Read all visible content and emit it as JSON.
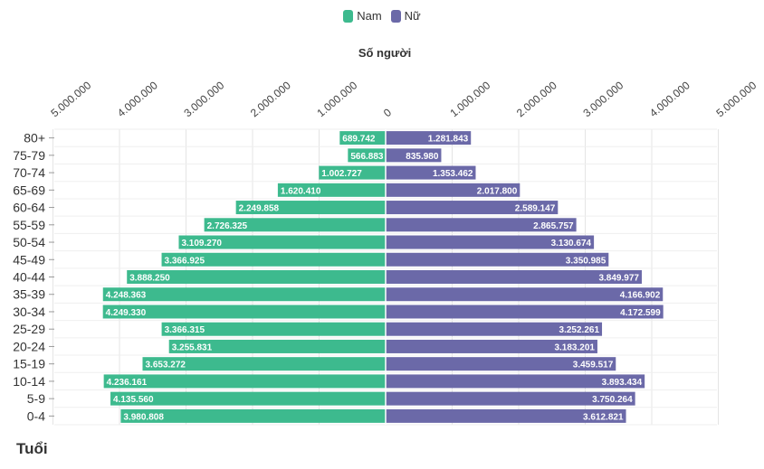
{
  "legend": {
    "male": "Nam",
    "female": "Nữ"
  },
  "colors": {
    "male": "#3dba8e",
    "female": "#6b69a8",
    "grid": "#e4e4e4",
    "text": "#333333"
  },
  "chart_data": {
    "type": "bar",
    "orientation": "horizontal-population-pyramid",
    "title": "",
    "xlabel": "Số người",
    "ylabel": "Tuổi",
    "xlim": [
      -5000000,
      5000000
    ],
    "x_ticks": [
      -5000000,
      -4000000,
      -3000000,
      -2000000,
      -1000000,
      0,
      1000000,
      2000000,
      3000000,
      4000000,
      5000000
    ],
    "x_tick_labels": [
      "5.000.000",
      "4.000.000",
      "3.000.000",
      "2.000.000",
      "1.000.000",
      "0",
      "1.000.000",
      "2.000.000",
      "3.000.000",
      "4.000.000",
      "5.000.000"
    ],
    "legend_position": "top-center",
    "categories": [
      "80+",
      "75-79",
      "70-74",
      "65-69",
      "60-64",
      "55-59",
      "50-54",
      "45-49",
      "40-44",
      "35-39",
      "30-34",
      "25-29",
      "20-24",
      "15-19",
      "10-14",
      "5-9",
      "0-4"
    ],
    "series": [
      {
        "name": "Nam",
        "side": "left",
        "values": [
          689742,
          566883,
          1002727,
          1620410,
          2249858,
          2726325,
          3109270,
          3366925,
          3888250,
          4248363,
          4249330,
          3366315,
          3255831,
          3653272,
          4236161,
          4135560,
          3980808
        ],
        "labels": [
          "689.742",
          "566.883",
          "1.002.727",
          "1.620.410",
          "2.249.858",
          "2.726.325",
          "3.109.270",
          "3.366.925",
          "3.888.250",
          "4.248.363",
          "4.249.330",
          "3.366.315",
          "3.255.831",
          "3.653.272",
          "4.236.161",
          "4.135.560",
          "3.980.808"
        ]
      },
      {
        "name": "Nữ",
        "side": "right",
        "values": [
          1281843,
          835980,
          1353462,
          2017800,
          2589147,
          2865757,
          3130674,
          3350985,
          3849977,
          4166902,
          4172599,
          3252261,
          3183201,
          3459517,
          3893434,
          3750264,
          3612821
        ],
        "labels": [
          "1.281.843",
          "835.980",
          "1.353.462",
          "2.017.800",
          "2.589.147",
          "2.865.757",
          "3.130.674",
          "3.350.985",
          "3.849.977",
          "4.166.902",
          "4.172.599",
          "3.252.261",
          "3.183.201",
          "3.459.517",
          "3.893.434",
          "3.750.264",
          "3.612.821"
        ]
      }
    ]
  }
}
